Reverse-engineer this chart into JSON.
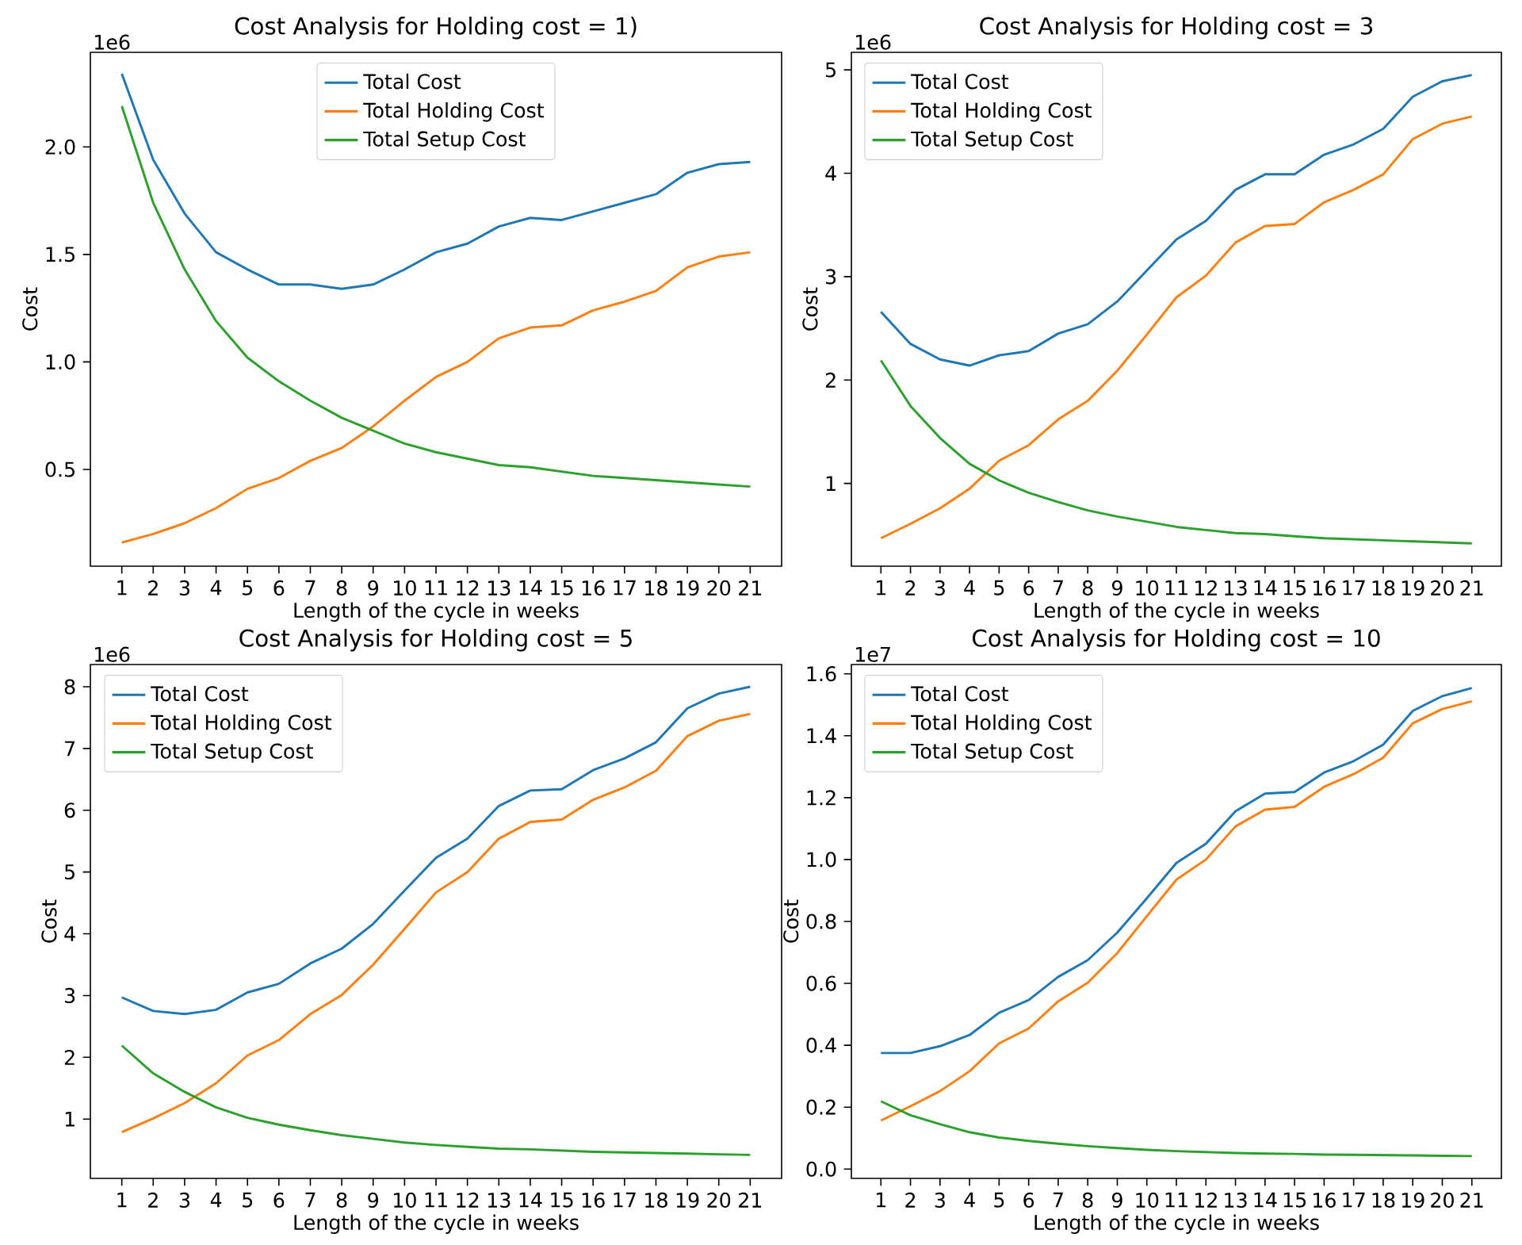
{
  "chart_data": [
    {
      "type": "line",
      "title": "Cost Analysis for Holding cost = 1)",
      "xlabel": "Length of the cycle in weeks",
      "ylabel": "Cost",
      "annotations": [
        "1e6"
      ],
      "legend": "top",
      "x": [
        1,
        2,
        3,
        4,
        5,
        6,
        7,
        8,
        9,
        10,
        11,
        12,
        13,
        14,
        15,
        16,
        17,
        18,
        19,
        20,
        21
      ],
      "xlim": [
        0,
        22
      ],
      "xticks": [
        1,
        2,
        3,
        4,
        5,
        6,
        7,
        8,
        9,
        10,
        11,
        12,
        13,
        14,
        15,
        16,
        17,
        18,
        19,
        20,
        21
      ],
      "ylim": [
        0.05,
        2.44
      ],
      "yticks": [
        {
          "value": 0.5,
          "label": "0.5"
        },
        {
          "value": 1,
          "label": "1.0"
        },
        {
          "value": 1.5,
          "label": "1.5"
        },
        {
          "value": 2,
          "label": "2.0"
        }
      ],
      "series": [
        {
          "name": "Total Cost",
          "color": "#1f77b4",
          "values": [
            2.34,
            1.94,
            1.69,
            1.51,
            1.43,
            1.36,
            1.36,
            1.34,
            1.36,
            1.43,
            1.51,
            1.55,
            1.63,
            1.67,
            1.66,
            1.7,
            1.74,
            1.78,
            1.88,
            1.92,
            1.93
          ]
        },
        {
          "name": "Total Holding Cost",
          "color": "#ff7f0e",
          "values": [
            0.16,
            0.2,
            0.25,
            0.32,
            0.41,
            0.46,
            0.54,
            0.6,
            0.7,
            0.82,
            0.93,
            1.0,
            1.11,
            1.16,
            1.17,
            1.24,
            1.28,
            1.33,
            1.44,
            1.49,
            1.51
          ]
        },
        {
          "name": "Total Setup Cost",
          "color": "#2ca02c",
          "values": [
            2.19,
            1.74,
            1.43,
            1.19,
            1.02,
            0.91,
            0.82,
            0.74,
            0.68,
            0.62,
            0.58,
            0.55,
            0.52,
            0.51,
            0.49,
            0.47,
            0.46,
            0.45,
            0.44,
            0.43,
            0.42
          ]
        }
      ]
    },
    {
      "type": "line",
      "title": "Cost Analysis for Holding cost = 3",
      "xlabel": "Length of the cycle in weeks",
      "ylabel": "Cost",
      "annotations": [
        "1e6"
      ],
      "legend": "top left",
      "x": [
        1,
        2,
        3,
        4,
        5,
        6,
        7,
        8,
        9,
        10,
        11,
        12,
        13,
        14,
        15,
        16,
        17,
        18,
        19,
        20,
        21
      ],
      "xlim": [
        0,
        22
      ],
      "xticks": [
        1,
        2,
        3,
        4,
        5,
        6,
        7,
        8,
        9,
        10,
        11,
        12,
        13,
        14,
        15,
        16,
        17,
        18,
        19,
        20,
        21
      ],
      "ylim": [
        0.2,
        5.17
      ],
      "yticks": [
        1,
        2,
        3,
        4,
        5
      ],
      "series": [
        {
          "name": "Total Cost",
          "color": "#1f77b4",
          "values": [
            2.66,
            2.35,
            2.2,
            2.14,
            2.24,
            2.28,
            2.45,
            2.54,
            2.76,
            3.06,
            3.36,
            3.54,
            3.84,
            3.99,
            3.99,
            4.18,
            4.28,
            4.43,
            4.74,
            4.89,
            4.95
          ]
        },
        {
          "name": "Total Holding Cost",
          "color": "#ff7f0e",
          "values": [
            0.47,
            0.61,
            0.76,
            0.95,
            1.22,
            1.37,
            1.62,
            1.8,
            2.09,
            2.44,
            2.8,
            3.01,
            3.33,
            3.49,
            3.51,
            3.72,
            3.84,
            3.99,
            4.33,
            4.48,
            4.55
          ]
        },
        {
          "name": "Total Setup Cost",
          "color": "#2ca02c",
          "values": [
            2.19,
            1.75,
            1.44,
            1.19,
            1.03,
            0.91,
            0.82,
            0.74,
            0.68,
            0.63,
            0.58,
            0.55,
            0.52,
            0.51,
            0.49,
            0.47,
            0.46,
            0.45,
            0.44,
            0.43,
            0.42
          ]
        }
      ]
    },
    {
      "type": "line",
      "title": "Cost Analysis for Holding cost = 5",
      "xlabel": "Length of the cycle in weeks",
      "ylabel": "Cost",
      "annotations": [
        "1e6"
      ],
      "legend": "top left",
      "x": [
        1,
        2,
        3,
        4,
        5,
        6,
        7,
        8,
        9,
        10,
        11,
        12,
        13,
        14,
        15,
        16,
        17,
        18,
        19,
        20,
        21
      ],
      "xlim": [
        0,
        22
      ],
      "xticks": [
        1,
        2,
        3,
        4,
        5,
        6,
        7,
        8,
        9,
        10,
        11,
        12,
        13,
        14,
        15,
        16,
        17,
        18,
        19,
        20,
        21
      ],
      "ylim": [
        0.04,
        8.36
      ],
      "yticks": [
        1,
        2,
        3,
        4,
        5,
        6,
        7,
        8
      ],
      "series": [
        {
          "name": "Total Cost",
          "color": "#1f77b4",
          "values": [
            2.97,
            2.75,
            2.7,
            2.77,
            3.05,
            3.19,
            3.52,
            3.76,
            4.16,
            4.7,
            5.23,
            5.54,
            6.07,
            6.32,
            6.34,
            6.65,
            6.84,
            7.1,
            7.65,
            7.89,
            8.0
          ]
        },
        {
          "name": "Total Holding Cost",
          "color": "#ff7f0e",
          "values": [
            0.79,
            1.01,
            1.26,
            1.58,
            2.03,
            2.28,
            2.7,
            3.01,
            3.5,
            4.08,
            4.67,
            5.0,
            5.54,
            5.81,
            5.85,
            6.17,
            6.37,
            6.64,
            7.2,
            7.45,
            7.56
          ]
        },
        {
          "name": "Total Setup Cost",
          "color": "#2ca02c",
          "values": [
            2.19,
            1.74,
            1.44,
            1.19,
            1.02,
            0.91,
            0.82,
            0.74,
            0.68,
            0.62,
            0.58,
            0.55,
            0.52,
            0.51,
            0.49,
            0.47,
            0.46,
            0.45,
            0.44,
            0.43,
            0.42
          ]
        }
      ]
    },
    {
      "type": "line",
      "title": "Cost Analysis for Holding cost = 10",
      "xlabel": "Length of the cycle in weeks",
      "ylabel": "Cost",
      "annotations": [
        "1e7"
      ],
      "legend": "top left",
      "x": [
        1,
        2,
        3,
        4,
        5,
        6,
        7,
        8,
        9,
        10,
        11,
        12,
        13,
        14,
        15,
        16,
        17,
        18,
        19,
        20,
        21
      ],
      "xlim": [
        0,
        22
      ],
      "xticks": [
        1,
        2,
        3,
        4,
        5,
        6,
        7,
        8,
        9,
        10,
        11,
        12,
        13,
        14,
        15,
        16,
        17,
        18,
        19,
        20,
        21
      ],
      "ylim": [
        -0.03,
        1.63
      ],
      "yticks": [
        {
          "value": 0,
          "label": "0.0"
        },
        {
          "value": 0.2,
          "label": "0.2"
        },
        {
          "value": 0.4,
          "label": "0.4"
        },
        {
          "value": 0.6,
          "label": "0.6"
        },
        {
          "value": 0.8,
          "label": "0.8"
        },
        {
          "value": 1,
          "label": "1.0"
        },
        {
          "value": 1.2,
          "label": "1.2"
        },
        {
          "value": 1.4,
          "label": "1.4"
        },
        {
          "value": 1.6,
          "label": "1.6"
        }
      ],
      "series": [
        {
          "name": "Total Cost",
          "color": "#1f77b4",
          "values": [
            0.375,
            0.375,
            0.397,
            0.433,
            0.505,
            0.546,
            0.621,
            0.675,
            0.764,
            0.875,
            0.989,
            1.051,
            1.156,
            1.213,
            1.218,
            1.281,
            1.318,
            1.371,
            1.48,
            1.528,
            1.554
          ]
        },
        {
          "name": "Total Holding Cost",
          "color": "#ff7f0e",
          "values": [
            0.157,
            0.203,
            0.252,
            0.316,
            0.406,
            0.454,
            0.542,
            0.602,
            0.698,
            0.817,
            0.935,
            1.0,
            1.107,
            1.161,
            1.17,
            1.235,
            1.276,
            1.329,
            1.44,
            1.486,
            1.511
          ]
        },
        {
          "name": "Total Setup Cost",
          "color": "#2ca02c",
          "values": [
            0.219,
            0.174,
            0.145,
            0.119,
            0.102,
            0.091,
            0.082,
            0.074,
            0.068,
            0.062,
            0.058,
            0.055,
            0.052,
            0.05,
            0.049,
            0.047,
            0.046,
            0.045,
            0.044,
            0.043,
            0.042
          ]
        }
      ]
    }
  ]
}
